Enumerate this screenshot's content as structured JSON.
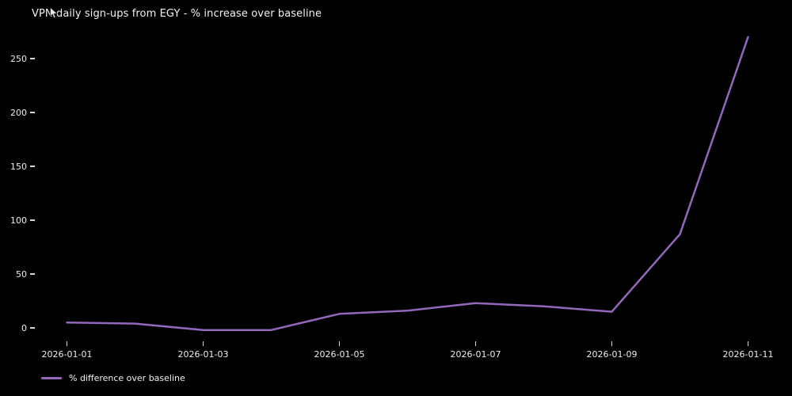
{
  "chart_data": {
    "type": "line",
    "title": "VPN daily sign-ups from EGY - % increase over baseline",
    "x": [
      "2026-01-01",
      "2026-01-02",
      "2026-01-03",
      "2026-01-04",
      "2026-01-05",
      "2026-01-06",
      "2026-01-07",
      "2026-01-08",
      "2026-01-09",
      "2026-01-10",
      "2026-01-11"
    ],
    "series": [
      {
        "name": "% difference over baseline",
        "color": "#9467bd",
        "values": [
          5,
          4,
          -2,
          -2,
          13,
          16,
          23,
          20,
          15,
          87,
          270
        ]
      }
    ],
    "xticks": [
      "2026-01-01",
      "2026-01-03",
      "2026-01-05",
      "2026-01-07",
      "2026-01-09",
      "2026-01-11"
    ],
    "yticks": [
      0,
      50,
      100,
      150,
      200,
      250
    ],
    "ylim": [
      -20,
      285
    ],
    "xlabel": "",
    "ylabel": "",
    "grid": false,
    "legend_position": "lower-left",
    "background_color": "#000000",
    "text_color": "#f2f2f2"
  },
  "icons": {
    "mouse_cursor": "arrow-pointer"
  }
}
